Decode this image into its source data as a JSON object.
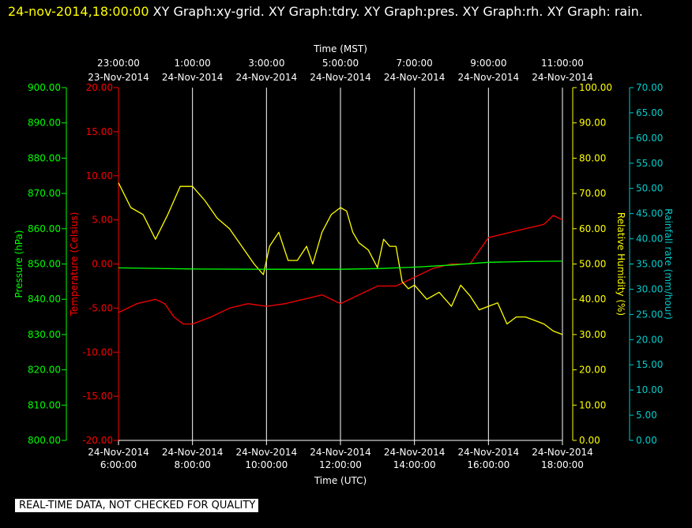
{
  "header": {
    "timestamp": "24-nov-2014,18:00:00",
    "graphs": " XY Graph:xy-grid.  XY Graph:tdry.  XY Graph:pres.  XY Graph:rh.  XY Graph: rain."
  },
  "disclaimer": "REAL-TIME DATA, NOT CHECKED FOR QUALITY",
  "colors": {
    "temperature": "#ff0000",
    "humidity": "#ffff00",
    "pressure": "#00ff00",
    "rain": "#00cccc",
    "grid": "#ffffff",
    "background": "#000000"
  },
  "chart_data": {
    "type": "line",
    "grid": "vertical",
    "x_bottom": {
      "label": "Time (UTC)",
      "range": [
        "24-Nov-2014 6:00:00",
        "24-Nov-2014 18:00:00"
      ],
      "ticks": [
        {
          "date": "24-Nov-2014",
          "time": "6:00:00"
        },
        {
          "date": "24-Nov-2014",
          "time": "8:00:00"
        },
        {
          "date": "24-Nov-2014",
          "time": "10:00:00"
        },
        {
          "date": "24-Nov-2014",
          "time": "12:00:00"
        },
        {
          "date": "24-Nov-2014",
          "time": "14:00:00"
        },
        {
          "date": "24-Nov-2014",
          "time": "16:00:00"
        },
        {
          "date": "24-Nov-2014",
          "time": "18:00:00"
        }
      ]
    },
    "x_top": {
      "label": "Time (MST)",
      "ticks": [
        {
          "time": "23:00:00",
          "date": "23-Nov-2014"
        },
        {
          "time": "1:00:00",
          "date": "24-Nov-2014"
        },
        {
          "time": "3:00:00",
          "date": "24-Nov-2014"
        },
        {
          "time": "5:00:00",
          "date": "24-Nov-2014"
        },
        {
          "time": "7:00:00",
          "date": "24-Nov-2014"
        },
        {
          "time": "9:00:00",
          "date": "24-Nov-2014"
        },
        {
          "time": "11:00:00",
          "date": "24-Nov-2014"
        }
      ]
    },
    "axes": {
      "pressure": {
        "label": "Pressure (hPa)",
        "range": [
          800,
          900
        ],
        "ticks": [
          "800.00",
          "810.00",
          "820.00",
          "830.00",
          "840.00",
          "850.00",
          "860.00",
          "870.00",
          "880.00",
          "890.00",
          "900.00"
        ]
      },
      "temperature": {
        "label": "Temperature (Celsius)",
        "range": [
          -20,
          20
        ],
        "ticks": [
          "-20.00",
          "-15.00",
          "-10.00",
          "-5.00",
          "0.00",
          "5.00",
          "10.00",
          "15.00",
          "20.00"
        ]
      },
      "humidity": {
        "label": "Relative Humidity (%)",
        "range": [
          0,
          100
        ],
        "ticks": [
          "0.00",
          "10.00",
          "20.00",
          "30.00",
          "40.00",
          "50.00",
          "60.00",
          "70.00",
          "80.00",
          "90.00",
          "100.00"
        ]
      },
      "rain": {
        "label": "Rainfall rate (mm/hour)",
        "range": [
          0,
          70
        ],
        "ticks": [
          "0.00",
          "5.00",
          "10.00",
          "15.00",
          "20.00",
          "25.00",
          "30.00",
          "35.00",
          "40.00",
          "45.00",
          "50.00",
          "55.00",
          "60.00",
          "65.00",
          "70.00"
        ]
      }
    },
    "series": [
      {
        "name": "Temperature (Celsius)",
        "axis": "temperature",
        "x": [
          "2014-11-24 06:00",
          "2014-11-24 06:30",
          "2014-11-24 07:00",
          "2014-11-24 07:15",
          "2014-11-24 07:30",
          "2014-11-24 07:45",
          "2014-11-24 08:00",
          "2014-11-24 08:30",
          "2014-11-24 09:00",
          "2014-11-24 09:30",
          "2014-11-24 10:00",
          "2014-11-24 10:30",
          "2014-11-24 11:00",
          "2014-11-24 11:30",
          "2014-11-24 12:00",
          "2014-11-24 12:30",
          "2014-11-24 13:00",
          "2014-11-24 13:30",
          "2014-11-24 14:00",
          "2014-11-24 14:30",
          "2014-11-24 15:00",
          "2014-11-24 15:30",
          "2014-11-24 16:00",
          "2014-11-24 16:30",
          "2014-11-24 17:00",
          "2014-11-24 17:30",
          "2014-11-24 17:45",
          "2014-11-24 18:00"
        ],
        "y": [
          -5.5,
          -4.5,
          -4.0,
          -4.5,
          -6.0,
          -6.8,
          -6.8,
          -6.0,
          -5.0,
          -4.5,
          -4.8,
          -4.5,
          -4.0,
          -3.5,
          -4.5,
          -3.5,
          -2.5,
          -2.5,
          -1.5,
          -0.5,
          0.0,
          0.0,
          3.0,
          3.5,
          4.0,
          4.5,
          5.5,
          5.0
        ]
      },
      {
        "name": "Relative Humidity (%)",
        "axis": "humidity",
        "x": [
          "2014-11-24 06:00",
          "2014-11-24 06:20",
          "2014-11-24 06:40",
          "2014-11-24 07:00",
          "2014-11-24 07:20",
          "2014-11-24 07:40",
          "2014-11-24 08:00",
          "2014-11-24 08:20",
          "2014-11-24 08:40",
          "2014-11-24 09:00",
          "2014-11-24 09:20",
          "2014-11-24 09:40",
          "2014-11-24 09:55",
          "2014-11-24 10:05",
          "2014-11-24 10:20",
          "2014-11-24 10:35",
          "2014-11-24 10:50",
          "2014-11-24 11:05",
          "2014-11-24 11:15",
          "2014-11-24 11:30",
          "2014-11-24 11:45",
          "2014-11-24 12:00",
          "2014-11-24 12:10",
          "2014-11-24 12:20",
          "2014-11-24 12:30",
          "2014-11-24 12:45",
          "2014-11-24 13:00",
          "2014-11-24 13:10",
          "2014-11-24 13:20",
          "2014-11-24 13:30",
          "2014-11-24 13:40",
          "2014-11-24 13:50",
          "2014-11-24 14:00",
          "2014-11-24 14:20",
          "2014-11-24 14:40",
          "2014-11-24 15:00",
          "2014-11-24 15:15",
          "2014-11-24 15:30",
          "2014-11-24 15:45",
          "2014-11-24 16:00",
          "2014-11-24 16:15",
          "2014-11-24 16:30",
          "2014-11-24 16:45",
          "2014-11-24 17:00",
          "2014-11-24 17:15",
          "2014-11-24 17:30",
          "2014-11-24 17:45",
          "2014-11-24 18:00"
        ],
        "y": [
          73,
          66,
          64,
          57,
          64,
          72,
          72,
          68,
          63,
          60,
          55,
          50,
          47,
          55,
          59,
          51,
          51,
          55,
          50,
          59,
          64,
          66,
          65,
          59,
          56,
          54,
          49,
          57,
          55,
          55,
          45,
          43,
          44,
          40,
          42,
          38,
          44,
          41,
          37,
          38,
          39,
          33,
          35,
          35,
          34,
          33,
          31,
          30
        ]
      },
      {
        "name": "Pressure (hPa)",
        "axis": "pressure",
        "x": [
          "2014-11-24 06:00",
          "2014-11-24 08:00",
          "2014-11-24 10:00",
          "2014-11-24 12:00",
          "2014-11-24 13:00",
          "2014-11-24 14:00",
          "2014-11-24 15:00",
          "2014-11-24 16:00",
          "2014-11-24 17:00",
          "2014-11-24 18:00"
        ],
        "y": [
          848.9,
          848.6,
          848.5,
          848.5,
          848.7,
          849.1,
          849.7,
          850.5,
          850.7,
          850.8
        ]
      }
    ]
  }
}
